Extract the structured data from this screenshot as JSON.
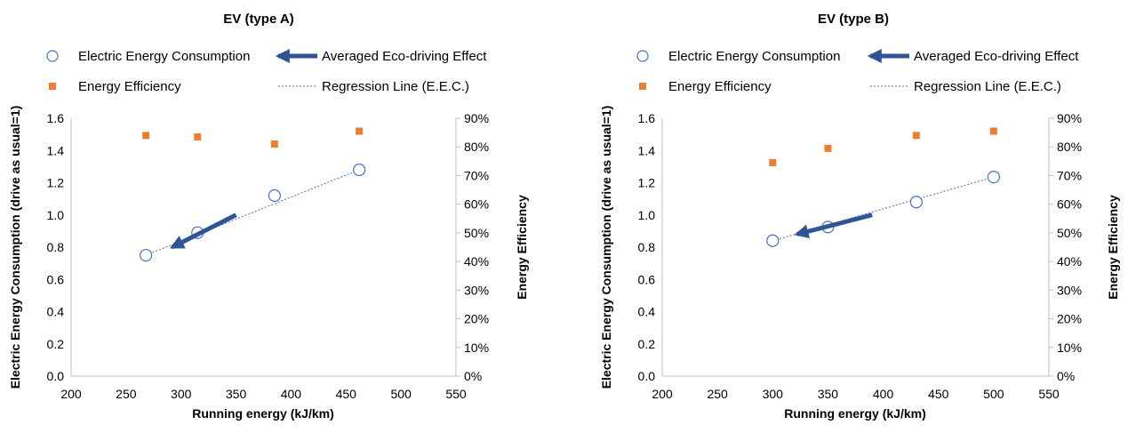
{
  "colors": {
    "eec": "#4472C4",
    "efficiency": "#ED7D31",
    "arrow": "#2F5597",
    "axis": "#BFBFBF",
    "text": "#000000"
  },
  "legend": {
    "eec": "Electric Energy Consumption",
    "effect": "Averaged Eco-driving Effect",
    "efficiency": "Energy Efficiency",
    "regression": "Regression Line (E.E.C.)"
  },
  "chart_data": [
    {
      "type": "scatter",
      "title": "EV (type A)",
      "xlabel": "Running energy (kJ/km)",
      "ylabel": "Electric Energy Consumption (drive as usual=1)",
      "y2label": "Energy Efficiency",
      "xlim": [
        200,
        550
      ],
      "ylim": [
        0,
        1.6
      ],
      "y2lim": [
        0,
        0.9
      ],
      "x_ticks": [
        "200",
        "250",
        "300",
        "350",
        "400",
        "450",
        "500",
        "550"
      ],
      "y_ticks": [
        "0.0",
        "0.2",
        "0.4",
        "0.6",
        "0.8",
        "1.0",
        "1.2",
        "1.4",
        "1.6"
      ],
      "y2_ticks": [
        "0%",
        "10%",
        "20%",
        "30%",
        "40%",
        "50%",
        "60%",
        "70%",
        "80%",
        "90%"
      ],
      "grid": false,
      "legend_position": "top",
      "series": [
        {
          "name": "Electric Energy Consumption",
          "axis": "left",
          "marker": "open-circle",
          "x": [
            268,
            315,
            385,
            462
          ],
          "y": [
            0.75,
            0.89,
            1.12,
            1.28
          ]
        },
        {
          "name": "Energy Efficiency",
          "axis": "right",
          "marker": "square",
          "x": [
            268,
            315,
            385,
            462
          ],
          "y": [
            0.84,
            0.835,
            0.81,
            0.855
          ]
        },
        {
          "name": "Regression Line (E.E.C.)",
          "axis": "left",
          "style": "dotted-line",
          "x": [
            268,
            462
          ],
          "y": [
            0.75,
            1.28
          ]
        },
        {
          "name": "Averaged Eco-driving Effect",
          "axis": "left",
          "style": "arrow",
          "x": [
            350,
            292
          ],
          "y": [
            1.0,
            0.8
          ]
        }
      ]
    },
    {
      "type": "scatter",
      "title": "EV (type B)",
      "xlabel": "Running energy (kJ/km)",
      "ylabel": "Electric Energy Consumption (drive as usual=1)",
      "y2label": "Energy Efficiency",
      "xlim": [
        200,
        550
      ],
      "ylim": [
        0,
        1.6
      ],
      "y2lim": [
        0,
        0.9
      ],
      "x_ticks": [
        "200",
        "250",
        "300",
        "350",
        "400",
        "450",
        "500",
        "550"
      ],
      "y_ticks": [
        "0.0",
        "0.2",
        "0.4",
        "0.6",
        "0.8",
        "1.0",
        "1.2",
        "1.4",
        "1.6"
      ],
      "y2_ticks": [
        "0%",
        "10%",
        "20%",
        "30%",
        "40%",
        "50%",
        "60%",
        "70%",
        "80%",
        "90%"
      ],
      "grid": false,
      "legend_position": "top",
      "series": [
        {
          "name": "Electric Energy Consumption",
          "axis": "left",
          "marker": "open-circle",
          "x": [
            300,
            350,
            430,
            500
          ],
          "y": [
            0.84,
            0.925,
            1.08,
            1.235
          ]
        },
        {
          "name": "Energy Efficiency",
          "axis": "right",
          "marker": "square",
          "x": [
            300,
            350,
            430,
            500
          ],
          "y": [
            0.745,
            0.795,
            0.84,
            0.855
          ]
        },
        {
          "name": "Regression Line (E.E.C.)",
          "axis": "left",
          "style": "dotted-line",
          "x": [
            300,
            500
          ],
          "y": [
            0.84,
            1.235
          ]
        },
        {
          "name": "Averaged Eco-driving Effect",
          "axis": "left",
          "style": "arrow",
          "x": [
            390,
            322
          ],
          "y": [
            1.0,
            0.88
          ]
        }
      ]
    }
  ]
}
